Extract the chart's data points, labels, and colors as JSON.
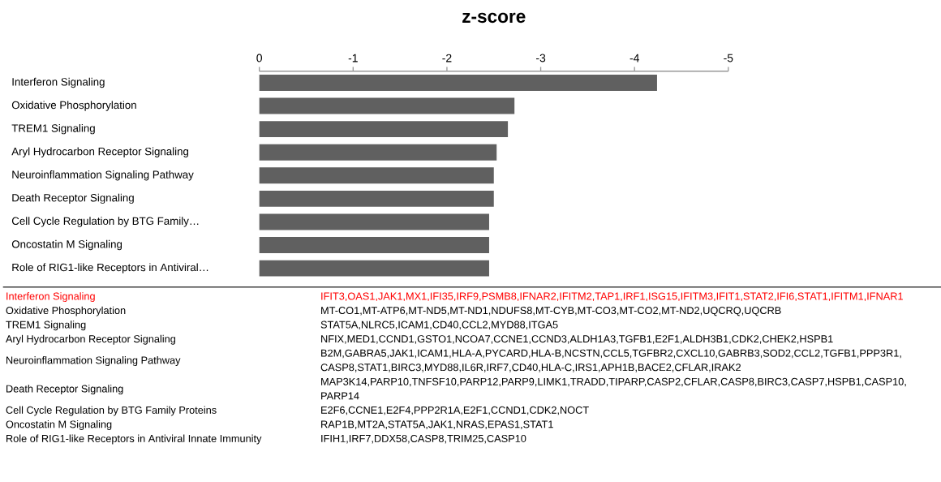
{
  "chart_data": {
    "type": "bar",
    "orientation": "horizontal",
    "title": "z-score",
    "categories": [
      "Interferon Signaling",
      "Oxidative Phosphorylation",
      "TREM1 Signaling",
      "Aryl Hydrocarbon Receptor Signaling",
      "Neuroinflammation Signaling Pathway",
      "Death Receptor Signaling",
      "Cell Cycle Regulation by BTG Family…",
      "Oncostatin M Signaling",
      "Role of RIG1-like Receptors in Antiviral…"
    ],
    "values": [
      -4.24,
      -2.72,
      -2.65,
      -2.53,
      -2.5,
      -2.5,
      -2.45,
      -2.45,
      -2.45
    ],
    "color": "#606060",
    "xlim": [
      0,
      -5
    ],
    "xticks": [
      0,
      -1,
      -2,
      -3,
      -4,
      -5
    ],
    "annotations": [
      "Interferon Signaling",
      "IFIT3,OAS1,JAK1,MX1,IFI35,IRF9,PSMB8,IFNAR2,IFITM2,TAP1,IRF1,ISG15,IFITM3,IFIT1,STAT2,IFI6,STAT1,IFITM1,IFNAR1",
      "Oxidative Phosphorylation",
      "MT-CO1,MT-ATP6,MT-ND5,MT-ND1,NDUFS8,MT-CYB,MT-CO3,MT-CO2,MT-ND2,UQCRQ,UQCRB",
      "TREM1 Signaling",
      "STAT5A,NLRC5,ICAM1,CD40,CCL2,MYD88,ITGA5",
      "Aryl Hydrocarbon Receptor Signaling",
      "NFIX,MED1,CCND1,GSTO1,NCOA7,CCNE1,CCND3,ALDH1A3,TGFB1,E2F1,ALDH3B1,CDK2,CHEK2,HSPB1",
      "Neuroinflammation Signaling Pathway",
      "B2M,GABRA5,JAK1,ICAM1,HLA-A,PYCARD,HLA-B,NCSTN,CCL5,TGFBR2,CXCL10,GABRB3,SOD2,CCL2,TGFB1,PPP3R1,CASP8,STAT1,BIRC3,MYD88,IL6R,IRF7,CD40,HLA-C,IRS1,APH1B,BACE2,CFLAR,IRAK2",
      "Death Receptor Signaling",
      "MAP3K14,PARP10,TNFSF10,PARP12,PARP9,LIMK1,TRADD,TIPARP,CASP2,CFLAR,CASP8,BIRC3,CASP7,HSPB1,CASP10,PARP14",
      "Cell Cycle Regulation by BTG Family Proteins",
      "E2F6,CCNE1,E2F4,PPP2R1A,E2F1,CCND1,CDK2,NOCT",
      "Oncostatin M Signaling",
      "RAP1B,MT2A,STAT5A,JAK1,NRAS,EPAS1,STAT1",
      "Role of RIG1-like Receptors in Antiviral Innate Immunity",
      "IFIH1,IRF7,DDX58,CASP8,TRIM25,CASP10"
    ]
  }
}
